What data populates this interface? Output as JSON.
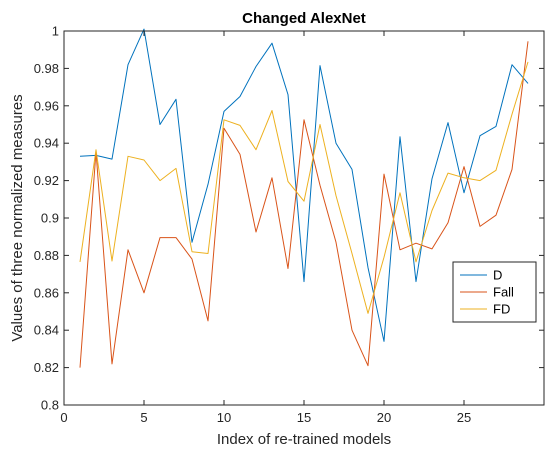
{
  "chart_data": {
    "type": "line",
    "title": "Changed AlexNet",
    "xlabel": "Index of re-trained models",
    "ylabel": "Values of three normalized measures",
    "xlim": [
      0,
      30
    ],
    "ylim": [
      0.8,
      1.0
    ],
    "xticks": [
      0,
      5,
      10,
      15,
      20,
      25
    ],
    "yticks": [
      0.8,
      0.82,
      0.84,
      0.86,
      0.88,
      0.9,
      0.92,
      0.94,
      0.96,
      0.98,
      1
    ],
    "ytick_labels": [
      "0.8",
      "0.82",
      "0.84",
      "0.86",
      "0.88",
      "0.9",
      "0.92",
      "0.94",
      "0.96",
      "0.98",
      "1"
    ],
    "xtick_labels": [
      "0",
      "5",
      "10",
      "15",
      "20",
      "25"
    ],
    "x": [
      1,
      2,
      3,
      4,
      5,
      6,
      7,
      8,
      9,
      10,
      11,
      12,
      13,
      14,
      15,
      16,
      17,
      18,
      19,
      20,
      21,
      22,
      23,
      24,
      25,
      26,
      27,
      28,
      29
    ],
    "series": [
      {
        "name": "D",
        "color": "#0072BD",
        "values": [
          0.933,
          0.9335,
          0.9315,
          0.982,
          1.001,
          0.95,
          0.9635,
          0.887,
          0.918,
          0.957,
          0.965,
          0.981,
          0.9935,
          0.966,
          0.866,
          0.9815,
          0.94,
          0.926,
          0.8735,
          0.834,
          0.9435,
          0.866,
          0.921,
          0.951,
          0.9135,
          0.944,
          0.949,
          0.982,
          0.972
        ]
      },
      {
        "name": "Fall",
        "color": "#D95319",
        "values": [
          0.82,
          0.9355,
          0.822,
          0.883,
          0.86,
          0.8895,
          0.8895,
          0.878,
          0.845,
          0.948,
          0.934,
          0.8925,
          0.9215,
          0.873,
          0.9525,
          0.9175,
          0.887,
          0.84,
          0.821,
          0.9235,
          0.883,
          0.8865,
          0.8835,
          0.8975,
          0.9275,
          0.8955,
          0.9015,
          0.926,
          0.9945
        ]
      },
      {
        "name": "FD",
        "color": "#EDB120",
        "values": [
          0.8765,
          0.9365,
          0.877,
          0.933,
          0.931,
          0.92,
          0.9265,
          0.882,
          0.881,
          0.9525,
          0.9495,
          0.9365,
          0.9575,
          0.9195,
          0.909,
          0.95,
          0.912,
          0.881,
          0.849,
          0.879,
          0.9135,
          0.8765,
          0.904,
          0.924,
          0.9215,
          0.92,
          0.9255,
          0.9555,
          0.9835
        ]
      }
    ],
    "legend_position": "right",
    "grid": false
  }
}
